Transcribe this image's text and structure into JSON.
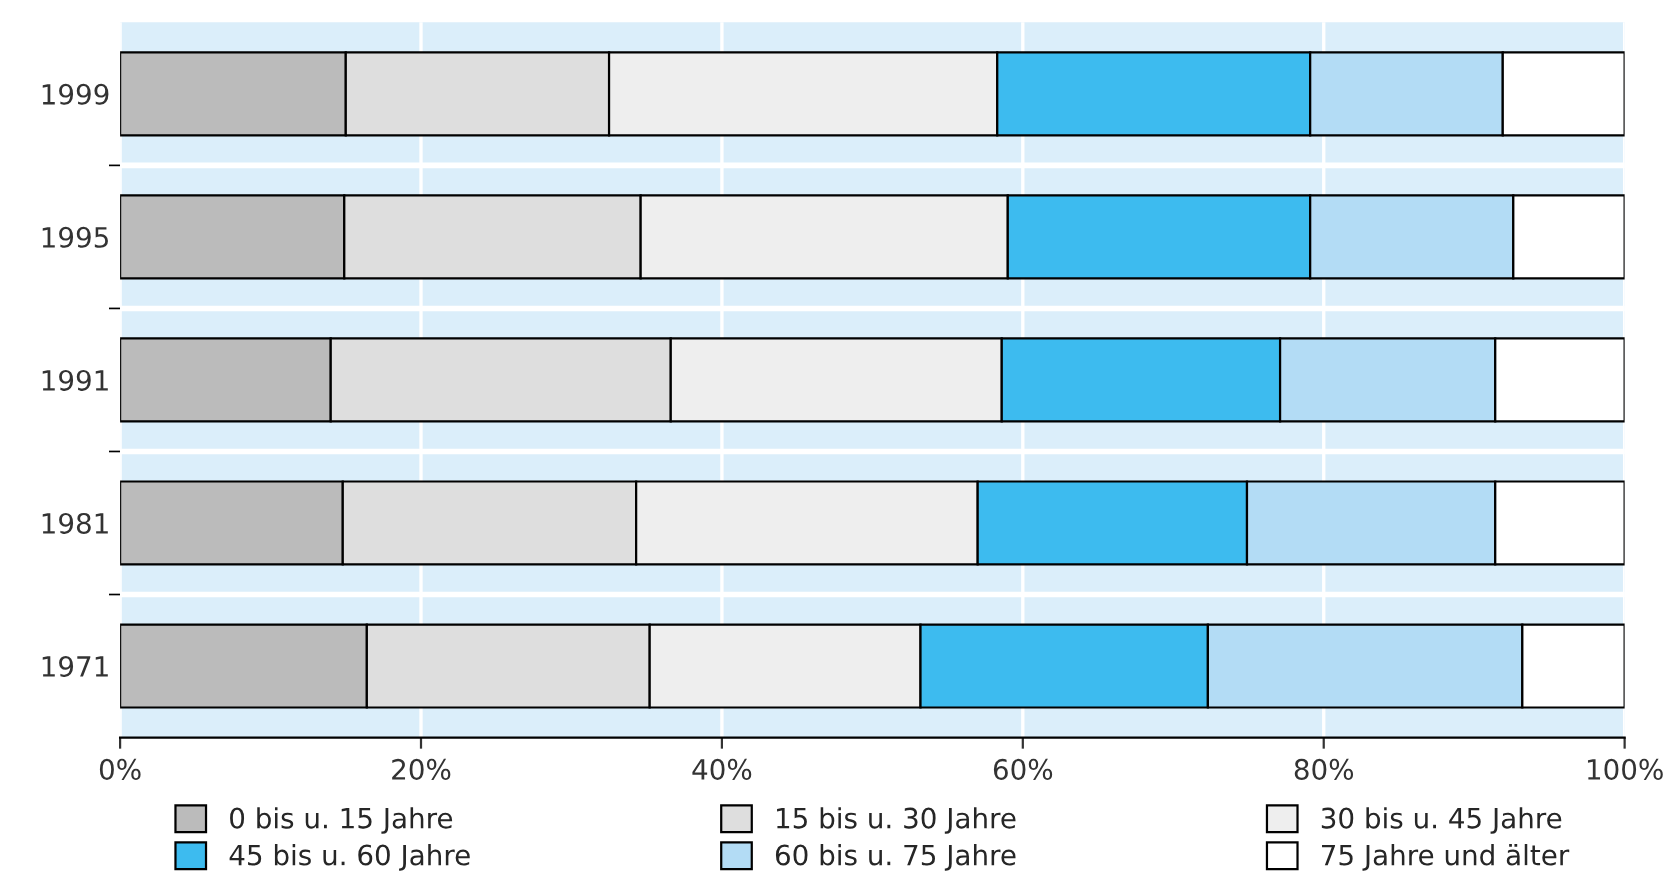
{
  "chart_data": {
    "type": "bar",
    "orientation": "horizontal",
    "stacked": true,
    "categories": [
      "1999",
      "1995",
      "1991",
      "1981",
      "1971"
    ],
    "series": [
      {
        "name": "0 bis u. 15 Jahre",
        "color": "#bbbbbb",
        "values": [
          15.0,
          14.9,
          14.0,
          14.8,
          16.4
        ]
      },
      {
        "name": "15 bis u. 30 Jahre",
        "color": "#dedede",
        "values": [
          17.5,
          19.7,
          22.6,
          19.5,
          18.8
        ]
      },
      {
        "name": "30 bis u. 45 Jahre",
        "color": "#eeeeee",
        "values": [
          25.8,
          24.4,
          22.0,
          22.7,
          18.0
        ]
      },
      {
        "name": "45 bis u. 60 Jahre",
        "color": "#3dbbef",
        "values": [
          20.8,
          20.1,
          18.5,
          17.9,
          19.1
        ]
      },
      {
        "name": "60 bis u. 75 Jahre",
        "color": "#b3dcf5",
        "values": [
          12.8,
          13.5,
          14.3,
          16.5,
          20.9
        ]
      },
      {
        "name": "75 Jahre und älter",
        "color": "#ffffff",
        "values": [
          8.1,
          7.4,
          8.6,
          8.6,
          6.8
        ]
      }
    ],
    "xlim": [
      0,
      100
    ],
    "xticks": [
      {
        "value": 0,
        "label": "0%"
      },
      {
        "value": 20,
        "label": "20%"
      },
      {
        "value": 40,
        "label": "40%"
      },
      {
        "value": 60,
        "label": "60%"
      },
      {
        "value": 80,
        "label": "80%"
      },
      {
        "value": 100,
        "label": "100%"
      }
    ],
    "grid": "x",
    "legend": "bottom"
  }
}
